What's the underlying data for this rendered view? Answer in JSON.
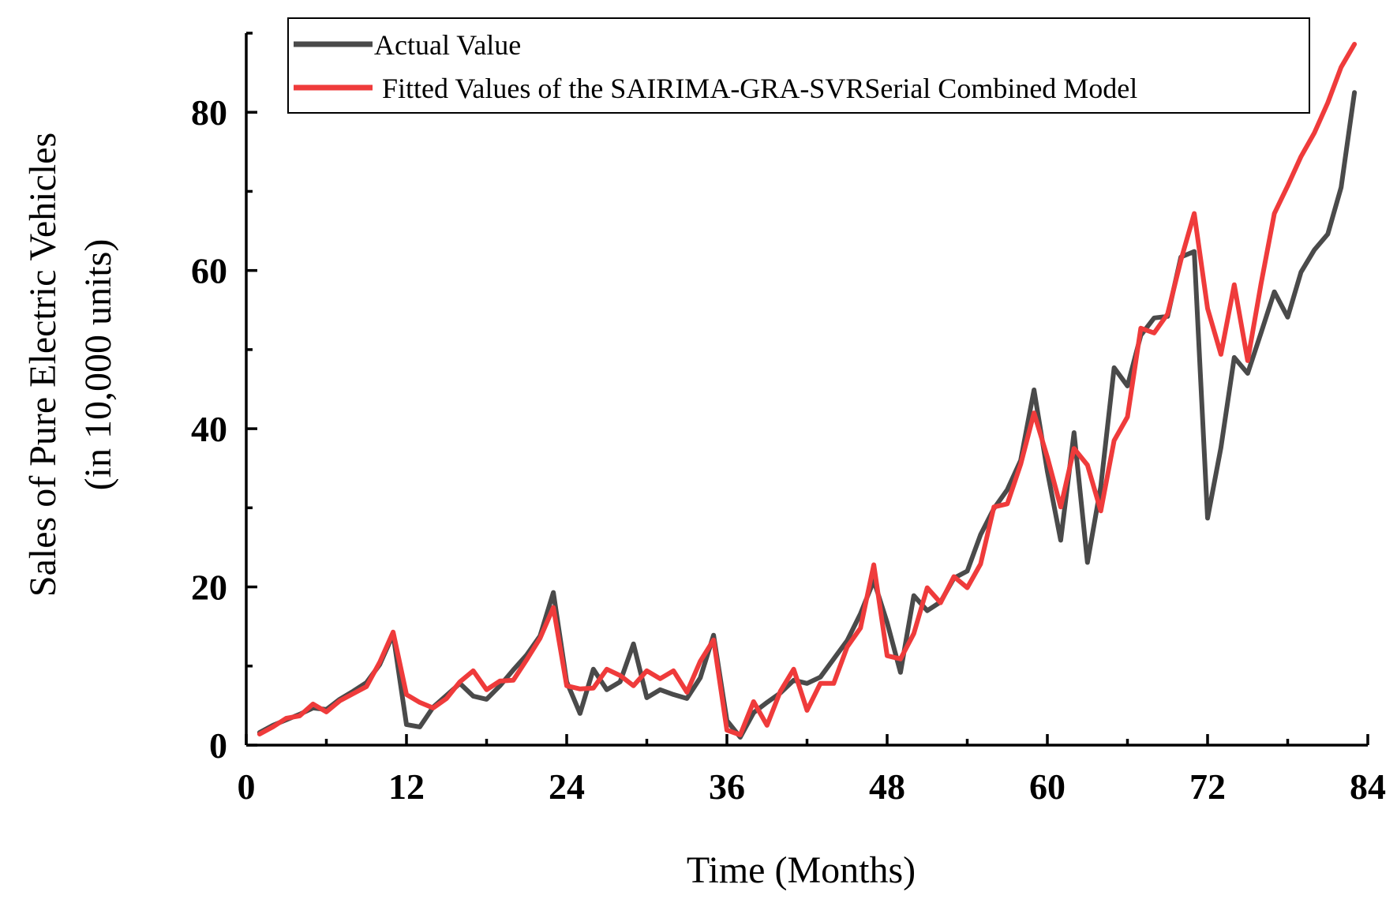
{
  "chart_data": {
    "type": "line",
    "title": "",
    "xlabel": "Time (Months)",
    "ylabel_line1": "Sales of Pure Electric Vehicles",
    "ylabel_line2": "(in 10,000 units)",
    "xlim": [
      0,
      84
    ],
    "ylim": [
      0,
      90
    ],
    "xticks": [
      0,
      12,
      24,
      36,
      48,
      60,
      72,
      84
    ],
    "yticks": [
      0,
      20,
      40,
      60,
      80
    ],
    "grid": false,
    "legend_position": "top",
    "series": [
      {
        "name": "Actual Value",
        "color": "#4a4a4a",
        "x": [
          1,
          2,
          3,
          4,
          5,
          6,
          7,
          8,
          9,
          10,
          11,
          12,
          13,
          14,
          15,
          16,
          17,
          18,
          19,
          20,
          21,
          22,
          23,
          24,
          25,
          26,
          27,
          28,
          29,
          30,
          31,
          32,
          33,
          34,
          35,
          36,
          37,
          38,
          39,
          40,
          41,
          42,
          43,
          44,
          45,
          46,
          47,
          48,
          49,
          50,
          51,
          52,
          53,
          54,
          55,
          56,
          57,
          58,
          59,
          60,
          61,
          62,
          63,
          64,
          65,
          66,
          67,
          68,
          69,
          70,
          71,
          72,
          73,
          74,
          75,
          76,
          77,
          78,
          79,
          80,
          81,
          82,
          83
        ],
        "values": [
          1.6,
          2.5,
          3.2,
          3.9,
          4.7,
          4.5,
          5.8,
          6.8,
          7.9,
          10.2,
          14.0,
          2.6,
          2.3,
          4.8,
          6.3,
          7.8,
          6.2,
          5.8,
          7.5,
          9.5,
          11.4,
          13.8,
          19.3,
          8.0,
          4.0,
          9.6,
          7.0,
          8.0,
          12.8,
          6.0,
          7.0,
          6.4,
          5.9,
          8.5,
          13.9,
          3.1,
          1.0,
          4.1,
          5.4,
          6.6,
          8.2,
          7.8,
          8.6,
          10.9,
          13.2,
          16.6,
          20.8,
          15.5,
          9.2,
          18.9,
          17.0,
          18.1,
          21.1,
          22.0,
          26.6,
          29.9,
          32.3,
          36.0,
          44.9,
          34.6,
          25.9,
          39.5,
          23.1,
          32.7,
          47.7,
          45.4,
          51.8,
          54.0,
          54.2,
          61.7,
          62.4,
          28.7,
          37.6,
          49.0,
          47.0,
          52.1,
          57.3,
          54.1,
          59.8,
          62.6,
          64.6,
          70.5,
          82.5
        ]
      },
      {
        "name": "Fitted Values of the SAIRIMA-GRA-SVRSerial Combined Model",
        "color": "#ef3b3b",
        "x": [
          1,
          2,
          3,
          4,
          5,
          6,
          7,
          8,
          9,
          10,
          11,
          12,
          13,
          14,
          15,
          16,
          17,
          18,
          19,
          20,
          21,
          22,
          23,
          24,
          25,
          26,
          27,
          28,
          29,
          30,
          31,
          32,
          33,
          34,
          35,
          36,
          37,
          38,
          39,
          40,
          41,
          42,
          43,
          44,
          45,
          46,
          47,
          48,
          49,
          50,
          51,
          52,
          53,
          54,
          55,
          56,
          57,
          58,
          59,
          60,
          61,
          62,
          63,
          64,
          65,
          66,
          67,
          68,
          69,
          70,
          71,
          72,
          73,
          74,
          75,
          76,
          77,
          78,
          79,
          80,
          81,
          82,
          83
        ],
        "values": [
          1.4,
          2.3,
          3.4,
          3.7,
          5.2,
          4.2,
          5.6,
          6.5,
          7.4,
          10.5,
          14.3,
          6.4,
          5.4,
          4.7,
          5.9,
          8.0,
          9.4,
          7.0,
          8.1,
          8.2,
          10.8,
          13.5,
          17.4,
          7.5,
          7.1,
          7.2,
          9.6,
          8.8,
          7.5,
          9.4,
          8.4,
          9.4,
          6.7,
          10.6,
          13.3,
          1.9,
          1.3,
          5.5,
          2.5,
          6.8,
          9.6,
          4.4,
          7.8,
          7.8,
          12.4,
          14.8,
          22.8,
          11.3,
          10.9,
          14.1,
          19.9,
          18.0,
          21.3,
          19.9,
          22.9,
          30.1,
          30.5,
          35.5,
          42.0,
          36.4,
          30.1,
          37.5,
          35.4,
          29.6,
          38.5,
          41.5,
          52.7,
          52.1,
          54.5,
          61.3,
          67.2,
          55.2,
          49.4,
          58.2,
          48.6,
          58.3,
          67.2,
          70.7,
          74.4,
          77.4,
          81.2,
          85.7,
          88.6
        ]
      }
    ]
  }
}
